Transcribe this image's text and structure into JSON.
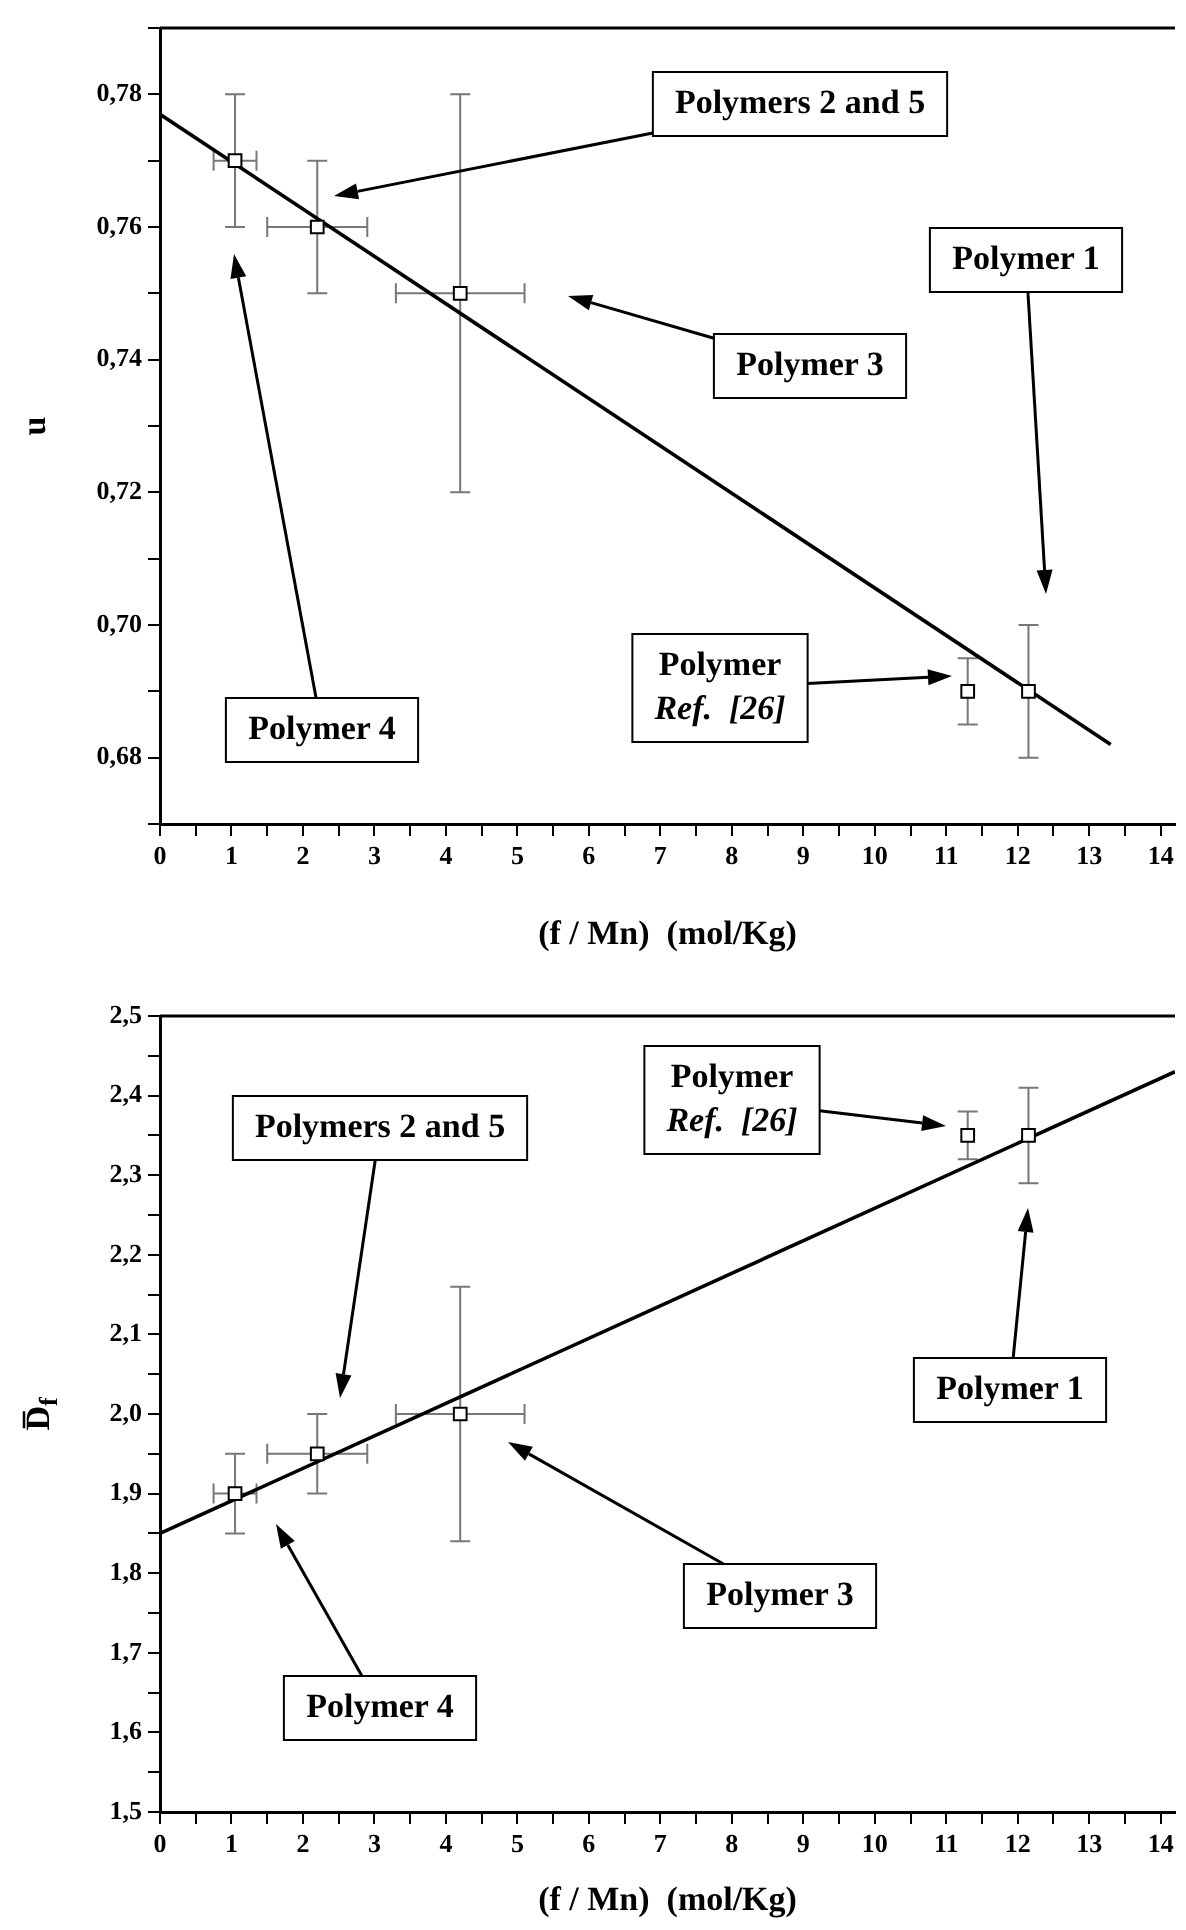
{
  "chart_data": [
    {
      "type": "scatter",
      "xlabel": "(f / Mn)  (mol/Kg)",
      "ylabel": "u",
      "legend": false,
      "grid": false,
      "xlim": [
        0,
        14.2
      ],
      "ylim": [
        0.67,
        0.79
      ],
      "xticks": [
        0,
        {
          "value": 0.5,
          "label": null
        },
        1,
        {
          "value": 1.5,
          "label": null
        },
        2,
        {
          "value": 2.5,
          "label": null
        },
        3,
        {
          "value": 3.5,
          "label": null
        },
        4,
        {
          "value": 4.5,
          "label": null
        },
        5,
        {
          "value": 5.5,
          "label": null
        },
        6,
        {
          "value": 6.5,
          "label": null
        },
        7,
        {
          "value": 7.5,
          "label": null
        },
        8,
        {
          "value": 8.5,
          "label": null
        },
        9,
        {
          "value": 9.5,
          "label": null
        },
        10,
        {
          "value": 10.5,
          "label": null
        },
        11,
        {
          "value": 11.5,
          "label": null
        },
        12,
        {
          "value": 12.5,
          "label": null
        },
        13,
        {
          "value": 13.5,
          "label": null
        },
        14
      ],
      "yticks": [
        {
          "value": 0.67,
          "label": null
        },
        {
          "value": 0.68,
          "label": "0,68"
        },
        {
          "value": 0.69,
          "label": null
        },
        {
          "value": 0.7,
          "label": "0,70"
        },
        {
          "value": 0.71,
          "label": null
        },
        {
          "value": 0.72,
          "label": "0,72"
        },
        {
          "value": 0.73,
          "label": null
        },
        {
          "value": 0.74,
          "label": "0,74"
        },
        {
          "value": 0.75,
          "label": null
        },
        {
          "value": 0.76,
          "label": "0,76"
        },
        {
          "value": 0.77,
          "label": null
        },
        {
          "value": 0.78,
          "label": "0,78"
        },
        {
          "value": 0.79,
          "label": null
        }
      ],
      "series": [
        {
          "marker": "square",
          "color": "#000000",
          "x": [
            1.05,
            2.2,
            4.2,
            11.3,
            12.15
          ],
          "values": [
            0.77,
            0.76,
            0.75,
            0.69,
            0.69
          ],
          "errors": [
            0.01,
            0.01,
            0.03,
            0.005,
            0.01
          ],
          "xerrors": [
            0.3,
            0.7,
            0.9,
            null,
            null
          ]
        },
        {
          "type": "line",
          "color": "#000000",
          "x": [
            0,
            13.3
          ],
          "values": [
            0.777,
            0.682
          ]
        }
      ],
      "annotations": [
        "Polymers 2 and 5",
        "Polymer 1",
        "Polymer 3",
        "Polymer 4",
        "Polymer\nRef.  [26]"
      ]
    },
    {
      "type": "scatter",
      "xlabel": "(f / Mn)  (mol/Kg)",
      "ylabel": "D̅$_{f}$",
      "legend": false,
      "grid": false,
      "xlim": [
        0,
        14.2
      ],
      "ylim": [
        1.5,
        2.5
      ],
      "xticks": [
        0,
        {
          "value": 0.5,
          "label": null
        },
        1,
        {
          "value": 1.5,
          "label": null
        },
        2,
        {
          "value": 2.5,
          "label": null
        },
        3,
        {
          "value": 3.5,
          "label": null
        },
        4,
        {
          "value": 4.5,
          "label": null
        },
        5,
        {
          "value": 5.5,
          "label": null
        },
        6,
        {
          "value": 6.5,
          "label": null
        },
        7,
        {
          "value": 7.5,
          "label": null
        },
        8,
        {
          "value": 8.5,
          "label": null
        },
        9,
        {
          "value": 9.5,
          "label": null
        },
        10,
        {
          "value": 10.5,
          "label": null
        },
        11,
        {
          "value": 11.5,
          "label": null
        },
        12,
        {
          "value": 12.5,
          "label": null
        },
        13,
        {
          "value": 13.5,
          "label": null
        },
        14
      ],
      "yticks": [
        {
          "value": 1.5,
          "label": "1,5"
        },
        {
          "value": 1.55,
          "label": null
        },
        {
          "value": 1.6,
          "label": "1,6"
        },
        {
          "value": 1.65,
          "label": null
        },
        {
          "value": 1.7,
          "label": "1,7"
        },
        {
          "value": 1.75,
          "label": null
        },
        {
          "value": 1.8,
          "label": "1,8"
        },
        {
          "value": 1.85,
          "label": null
        },
        {
          "value": 1.9,
          "label": "1,9"
        },
        {
          "value": 1.95,
          "label": null
        },
        {
          "value": 2.0,
          "label": "2,0"
        },
        {
          "value": 2.05,
          "label": null
        },
        {
          "value": 2.1,
          "label": "2,1"
        },
        {
          "value": 2.15,
          "label": null
        },
        {
          "value": 2.2,
          "label": "2,2"
        },
        {
          "value": 2.25,
          "label": null
        },
        {
          "value": 2.3,
          "label": "2,3"
        },
        {
          "value": 2.35,
          "label": null
        },
        {
          "value": 2.4,
          "label": "2,4"
        },
        {
          "value": 2.45,
          "label": null
        },
        {
          "value": 2.5,
          "label": "2,5"
        }
      ],
      "series": [
        {
          "marker": "square",
          "color": "#000000",
          "x": [
            1.05,
            2.2,
            4.2,
            11.3,
            12.15
          ],
          "values": [
            1.9,
            1.95,
            2.0,
            2.35,
            2.35
          ],
          "errors": [
            0.05,
            0.05,
            0.16,
            0.03,
            0.06
          ],
          "xerrors": [
            0.3,
            0.7,
            0.9,
            null,
            null
          ]
        },
        {
          "type": "line",
          "color": "#000000",
          "x": [
            0,
            14.2
          ],
          "values": [
            1.85,
            2.43
          ]
        }
      ],
      "annotations": [
        "Polymers 2 and 5",
        "Polymer\nRef.  [26]",
        "Polymer 1",
        "Polymer 3",
        "Polymer 4"
      ]
    }
  ]
}
